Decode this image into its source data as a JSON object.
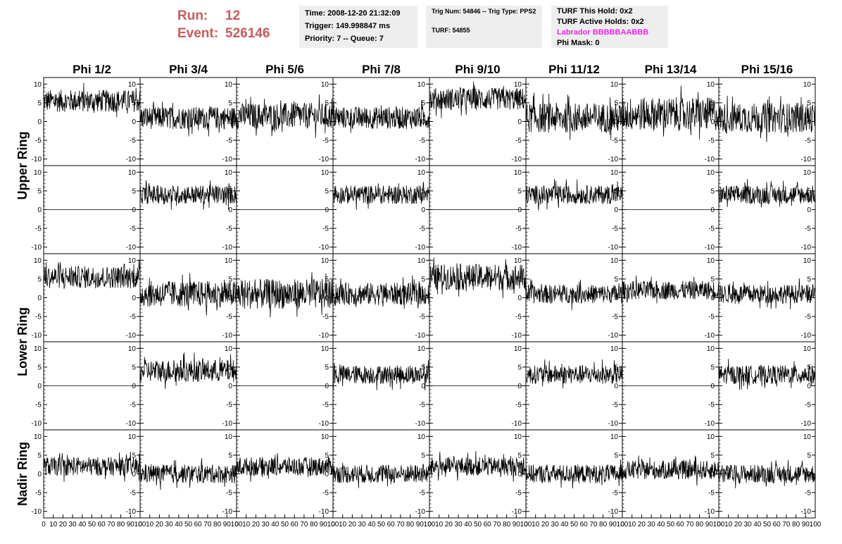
{
  "run_info": {
    "run_label": "Run:",
    "run_value": "12",
    "event_label": "Event:",
    "event_value": "526146"
  },
  "time_panel": {
    "time": "Time: 2008-12-20 21:32:09",
    "trigger": "Trigger: 149.998847 ms",
    "priority": "Priority: 7 -- Queue: 7"
  },
  "trig_panel": {
    "trig_num": "Trig Num: 54846 -- Trig Type: PPS2",
    "turf": "TURF: 54855"
  },
  "turf_panel": {
    "this_hold": "TURF This Hold: 0x2",
    "active_holds": "TURF Active Holds: 0x2",
    "labrador": "Labrador BBBBBAABBB",
    "phi_mask": "Phi Mask: 0"
  },
  "colors": {
    "run_text": "#cc5a5a",
    "labrador_text": "#e629e6",
    "panel_bg": "#eeeeee",
    "trace": "#000000"
  },
  "chart_data": {
    "type": "line",
    "columns": [
      "Phi 1/2",
      "Phi 3/4",
      "Phi 5/6",
      "Phi 7/8",
      "Phi 9/10",
      "Phi 11/12",
      "Phi 13/14",
      "Phi 15/16"
    ],
    "row_groups": [
      "Upper Ring",
      "Lower Ring",
      "Nadir Ring"
    ],
    "rows": 5,
    "xlim": [
      0,
      100
    ],
    "ylim": [
      -11,
      11
    ],
    "y_ticks": [
      -10,
      -5,
      0,
      5,
      10
    ],
    "x_ticks": [
      0,
      10,
      20,
      30,
      40,
      50,
      60,
      70,
      80,
      90,
      100
    ],
    "grid": false,
    "trace_baselines": [
      [
        5.5,
        1,
        1.5,
        1,
        6,
        1,
        2,
        1
      ],
      [
        0,
        4,
        0,
        4,
        0,
        4,
        0,
        4
      ],
      [
        5.5,
        1,
        1,
        1,
        5.5,
        1,
        2,
        1
      ],
      [
        0,
        4,
        0,
        3,
        0,
        3,
        0,
        3
      ],
      [
        2,
        0,
        2,
        0,
        2,
        0,
        1,
        0
      ]
    ],
    "trace_spread": [
      [
        3,
        3,
        3.5,
        3,
        3,
        4,
        4.5,
        4
      ],
      [
        0,
        2.5,
        0,
        2.5,
        0,
        2.5,
        0,
        2.5
      ],
      [
        3,
        3.5,
        4,
        3,
        3.5,
        2.5,
        2.5,
        2.5
      ],
      [
        0,
        3,
        0,
        2.5,
        0,
        2.5,
        0,
        2.5
      ],
      [
        2.5,
        2.5,
        2.5,
        2.5,
        2.5,
        2.5,
        2.5,
        2.5
      ]
    ]
  }
}
